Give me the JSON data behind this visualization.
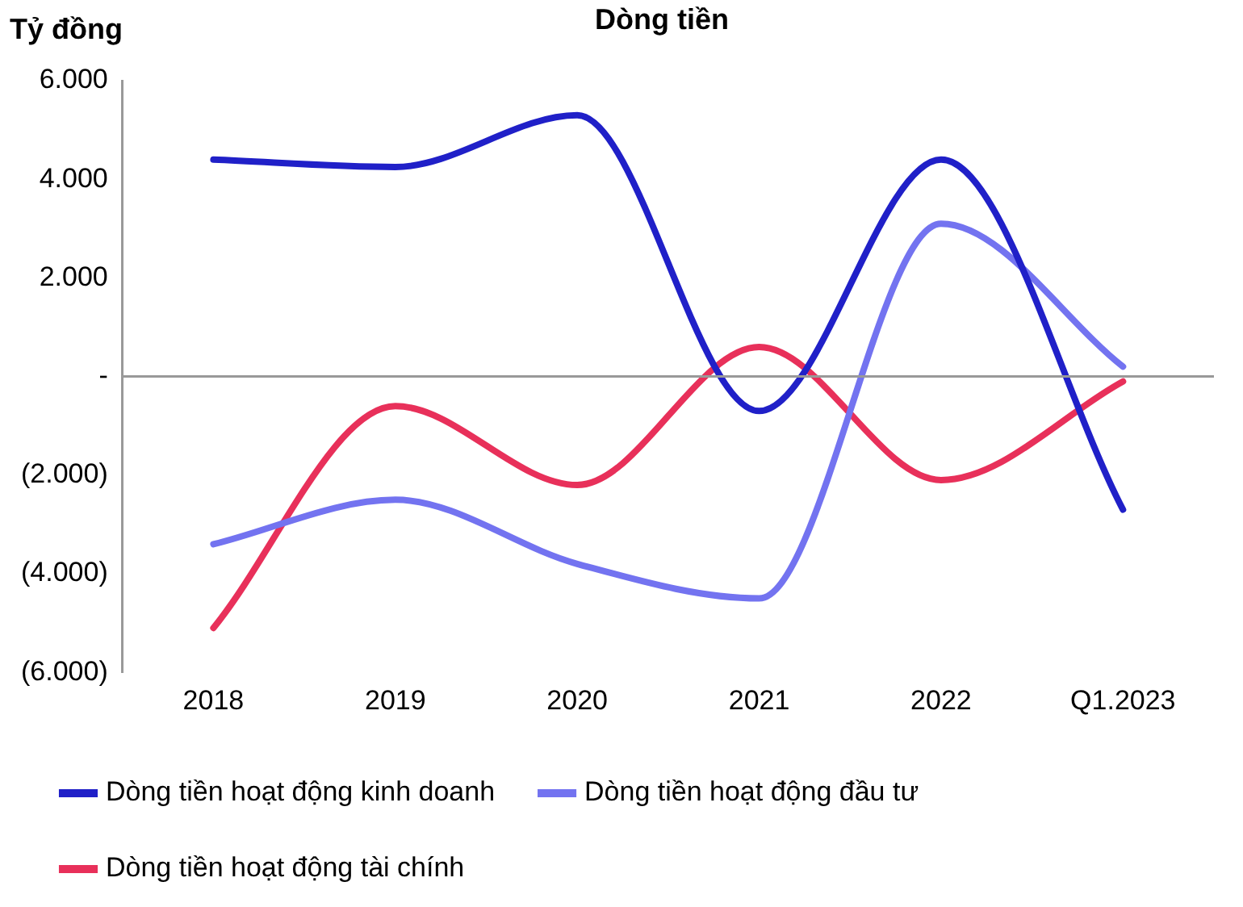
{
  "chart_data": {
    "type": "line",
    "title": "Dòng tiền",
    "ylabel": "Tỷ đồng",
    "categories": [
      "2018",
      "2019",
      "2020",
      "2021",
      "2022",
      "Q1.2023"
    ],
    "series": [
      {
        "name": "Dòng tiền hoạt động kinh doanh",
        "color": "#2020c8",
        "values": [
          4400,
          4250,
          5300,
          -700,
          4400,
          -2700
        ]
      },
      {
        "name": "Dòng tiền hoạt động đầu tư",
        "color": "#7373f0",
        "values": [
          -3400,
          -2500,
          -3800,
          -4500,
          3100,
          200
        ]
      },
      {
        "name": "Dòng tiền hoạt động tài chính",
        "color": "#e8305a",
        "values": [
          -5100,
          -600,
          -2200,
          600,
          -2100,
          -100
        ]
      }
    ],
    "ylim": [
      -6000,
      6000
    ],
    "yticks": [
      {
        "value": -6000,
        "label": "(6.000)"
      },
      {
        "value": -4000,
        "label": "(4.000)"
      },
      {
        "value": -2000,
        "label": "(2.000)"
      },
      {
        "value": 0,
        "label": "-"
      },
      {
        "value": 2000,
        "label": "2.000"
      },
      {
        "value": 4000,
        "label": "4.000"
      },
      {
        "value": 6000,
        "label": "6.000"
      }
    ],
    "ref_lines": [
      {
        "axis": "y",
        "value": 0,
        "color": "#999999"
      }
    ],
    "grid": false,
    "legend": "bottom",
    "marker": "none",
    "line_style": "solid"
  }
}
